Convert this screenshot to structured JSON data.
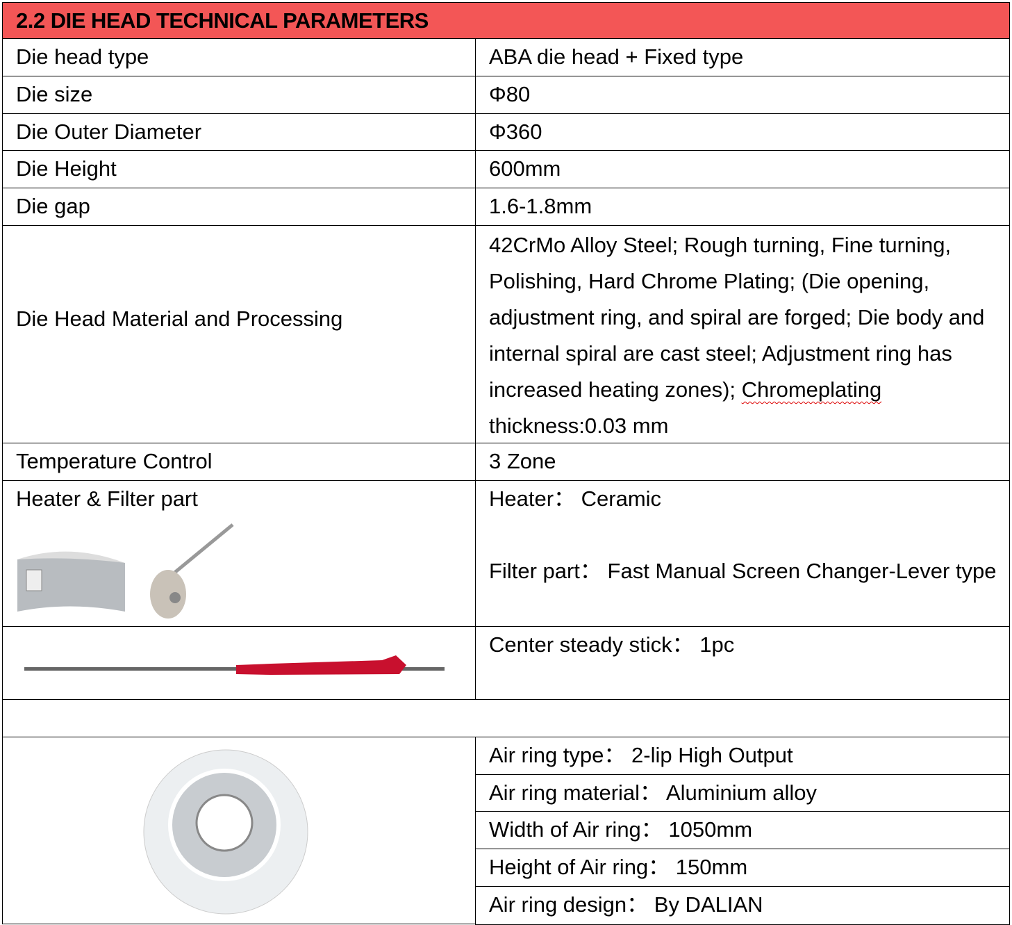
{
  "title": "2.2 DIE HEAD TECHNICAL PARAMETERS",
  "rows": [
    {
      "label": "Die head type",
      "value": "ABA die head + Fixed type"
    },
    {
      "label": "Die size",
      "value": "Φ80"
    },
    {
      "label": "Die Outer Diameter",
      "value": "Φ360"
    },
    {
      "label": "Die Height",
      "value": "600mm"
    },
    {
      "label": "Die gap",
      "value": "1.6-1.8mm"
    },
    {
      "label": "Die Head Material and Processing",
      "value_pre": "42CrMo Alloy Steel; Rough turning, Fine turning, Polishing, Hard Chrome Plating; (Die opening, adjustment ring, and spiral are forged; Die body and internal spiral are cast steel; Adjustment ring has increased heating zones); ",
      "value_flag": "Chromeplating",
      "value_post": " thickness:0.03 mm"
    },
    {
      "label": "Temperature Control",
      "value": "3 Zone"
    }
  ],
  "heater": {
    "label": "Heater & Filter part",
    "heater_line": "Heater：  Ceramic",
    "filter_line": "Filter part：  Fast Manual Screen Changer-Lever type"
  },
  "stick": {
    "value": "Center steady stick：  1pc"
  },
  "air_ring": [
    "Air ring type：  2-lip High Output",
    "Air ring material：  Aluminium alloy",
    "Width of Air ring：  1050mm",
    "Height of Air ring：  150mm",
    "Air ring design：  By DALIAN"
  ],
  "colors": {
    "header": "#f35656"
  }
}
